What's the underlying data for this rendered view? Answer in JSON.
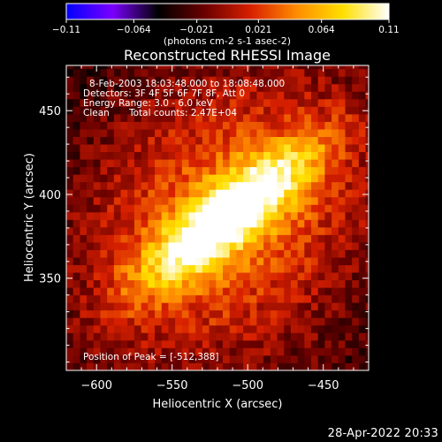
{
  "chart_data": {
    "type": "heatmap",
    "title": "Reconstructed RHESSI Image",
    "xlabel": "Heliocentric X (arcsec)",
    "ylabel": "Heliocentric Y (arcsec)",
    "x_ticks": [
      -600,
      -550,
      -500,
      -450
    ],
    "y_ticks": [
      350,
      400,
      450
    ],
    "xlim": [
      -620,
      -420
    ],
    "ylim": [
      295,
      477
    ],
    "colorbar": {
      "ticks": [
        -0.11,
        -0.064,
        -0.021,
        0.021,
        0.064,
        0.11
      ],
      "tick_labels": [
        "-0.11",
        "-0.064",
        "-0.021",
        "0.021",
        "0.064",
        "0.11"
      ],
      "unit_label": "(photons cm-2 s-1 asec-2)",
      "range": [
        -0.11,
        0.11
      ],
      "colormap": [
        "#0000ff",
        "#7b00ff",
        "#000000",
        "#6a0000",
        "#d82000",
        "#ff8c00",
        "#ffe000",
        "#ffffff"
      ]
    },
    "annotations": {
      "line1": "8-Feb-2003 18:03:48.000 to 18:08:48.000",
      "line2": "Detectors: 3F 4F 5F 6F 7F 8F, Att 0",
      "line3": "Energy Range: 3.0 - 6.0 keV",
      "line4_a": "Clean",
      "line4_b": "Total counts: 2.47E+04",
      "peak": "Position of Peak = [-512,388]"
    },
    "peak": {
      "x": -512,
      "y": 388,
      "value": 0.11
    },
    "source_axis_angle_deg": 35,
    "grid": false
  },
  "footer": {
    "timestamp": "28-Apr-2022 20:33"
  }
}
